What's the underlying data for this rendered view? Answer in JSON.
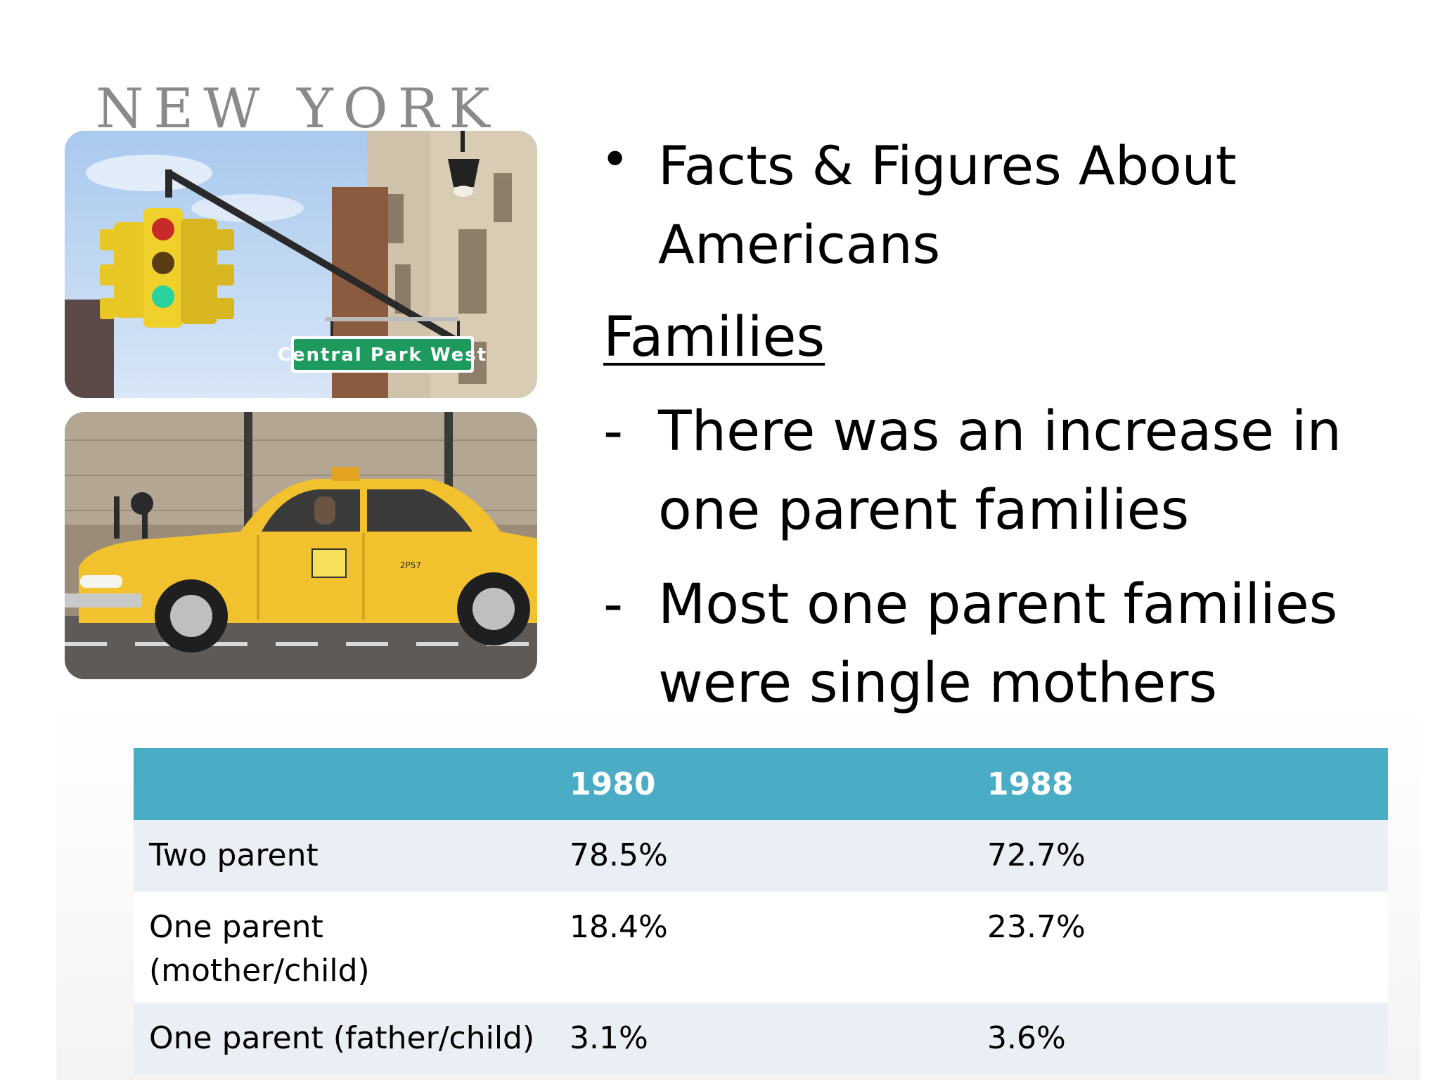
{
  "slide": {
    "images": {
      "top": {
        "caption": "NEW YORK",
        "street_sign": "Central Park West"
      },
      "bottom": {
        "taxi_number": "2P57"
      }
    },
    "heading_bullet": "•",
    "heading": "Facts & Figures About Americans",
    "subheading": "Families",
    "points": [
      {
        "marker": "-",
        "text": "There was an increase in one parent families"
      },
      {
        "marker": "-",
        "text": "Most one parent families were single mothers"
      }
    ]
  },
  "table": {
    "headers": [
      "",
      "1980",
      "1988"
    ],
    "rows": [
      [
        "Two parent",
        "78.5%",
        "72.7%"
      ],
      [
        "One parent (mother/child)",
        "18.4%",
        "23.7%"
      ],
      [
        "One parent (father/child)",
        "3.1%",
        "3.6%"
      ]
    ]
  },
  "colors": {
    "table_header": "#4bacc6",
    "band_row": "#e9eff5",
    "taxi_yellow": "#f2c12e"
  }
}
